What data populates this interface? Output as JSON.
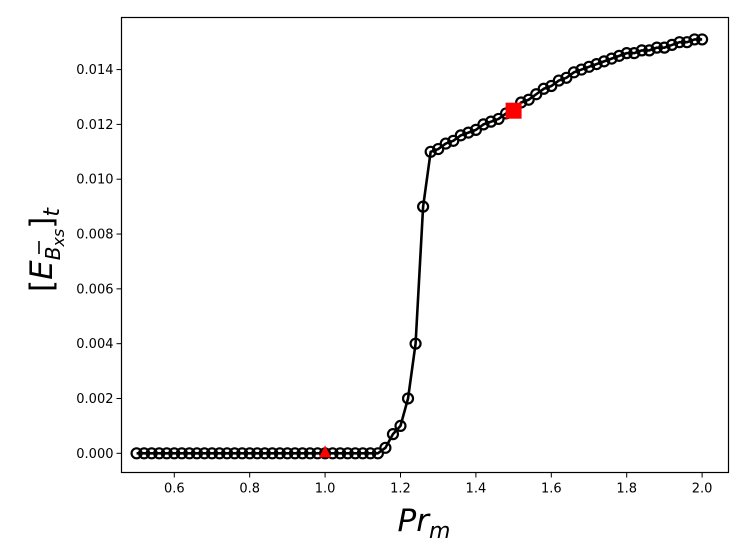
{
  "chart_data": {
    "type": "line",
    "title": "",
    "xlabel": "Pr_m",
    "ylabel": "[E_{B̄xs}]_t",
    "xlim": [
      0.46,
      2.07
    ],
    "ylim": [
      -0.0007,
      0.0159
    ],
    "xticks": [
      0.6,
      0.8,
      1.0,
      1.2,
      1.4,
      1.6,
      1.8,
      2.0
    ],
    "xtick_labels": [
      "0.6",
      "0.8",
      "1.0",
      "1.2",
      "1.4",
      "1.6",
      "1.8",
      "2.0"
    ],
    "yticks": [
      0.0,
      0.002,
      0.004,
      0.006,
      0.008,
      0.01,
      0.012,
      0.014
    ],
    "ytick_labels": [
      "0.000",
      "0.002",
      "0.004",
      "0.006",
      "0.008",
      "0.010",
      "0.012",
      "0.014"
    ],
    "grid": false,
    "legend": "none",
    "series": [
      {
        "style": "black line with open circle markers",
        "color": "#000000",
        "x": [
          0.5,
          0.52,
          0.54,
          0.56,
          0.58,
          0.6,
          0.62,
          0.64,
          0.66,
          0.68,
          0.7,
          0.72,
          0.74,
          0.76,
          0.78,
          0.8,
          0.82,
          0.84,
          0.86,
          0.88,
          0.9,
          0.92,
          0.94,
          0.96,
          0.98,
          1.0,
          1.02,
          1.04,
          1.06,
          1.08,
          1.1,
          1.12,
          1.14,
          1.16,
          1.18,
          1.2,
          1.22,
          1.24,
          1.26,
          1.28,
          1.3,
          1.32,
          1.34,
          1.36,
          1.38,
          1.4,
          1.42,
          1.44,
          1.46,
          1.48,
          1.5,
          1.52,
          1.54,
          1.56,
          1.58,
          1.6,
          1.62,
          1.64,
          1.66,
          1.68,
          1.7,
          1.72,
          1.74,
          1.76,
          1.78,
          1.8,
          1.82,
          1.84,
          1.86,
          1.88,
          1.9,
          1.92,
          1.94,
          1.96,
          1.98,
          2.0
        ],
        "y": [
          0,
          0,
          0,
          0,
          0,
          0,
          0,
          0,
          0,
          0,
          0,
          0,
          0,
          0,
          0,
          0,
          0,
          0,
          0,
          0,
          0,
          0,
          0,
          0,
          0,
          0,
          0,
          0,
          0,
          0,
          0,
          0,
          0,
          0.0002,
          0.0007,
          0.001,
          0.002,
          0.004,
          0.009,
          0.011,
          0.0111,
          0.0113,
          0.0114,
          0.0116,
          0.0117,
          0.0118,
          0.012,
          0.0121,
          0.0122,
          0.0124,
          0.0125,
          0.0128,
          0.0129,
          0.0131,
          0.0133,
          0.0134,
          0.0136,
          0.0137,
          0.0139,
          0.014,
          0.0141,
          0.0142,
          0.0143,
          0.0144,
          0.0145,
          0.0146,
          0.0146,
          0.0147,
          0.0147,
          0.0148,
          0.0148,
          0.0149,
          0.015,
          0.015,
          0.0151,
          0.0151
        ]
      }
    ],
    "highlights": [
      {
        "marker": "triangle",
        "color": "#ff0000",
        "x": 1.0,
        "y": 0.0
      },
      {
        "marker": "square",
        "color": "#ff0000",
        "x": 1.5,
        "y": 0.0125
      }
    ]
  }
}
